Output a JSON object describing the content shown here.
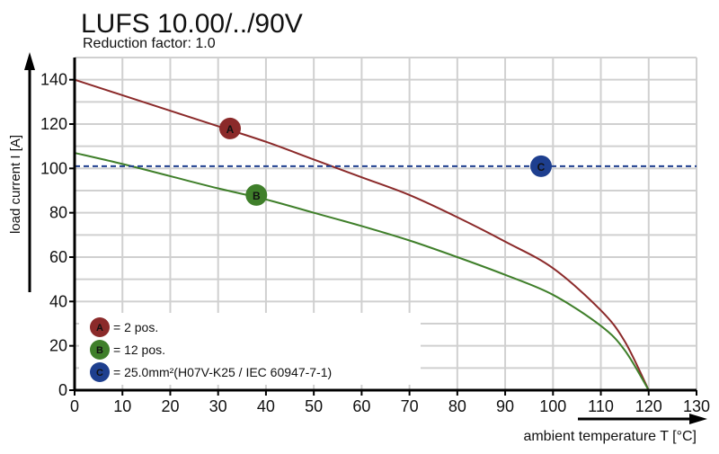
{
  "chart_data": {
    "type": "line",
    "title": "LUFS 10.00/../90V",
    "subtitle": "Reduction factor: 1.0",
    "xlabel": "ambient temperature T [°C]",
    "ylabel": "load current I [A]",
    "xlim": [
      0,
      130
    ],
    "ylim": [
      0,
      150
    ],
    "xticks": [
      0,
      10,
      20,
      30,
      40,
      50,
      60,
      70,
      80,
      90,
      100,
      110,
      120,
      130
    ],
    "yticks": [
      0,
      20,
      40,
      60,
      80,
      100,
      120,
      140
    ],
    "grid": true,
    "legend_placement": "bottom-left",
    "series": [
      {
        "marker": "A",
        "name": "= 2 pos.",
        "color": "#8b2a2a",
        "x": [
          0,
          10,
          20,
          30,
          40,
          50,
          60,
          70,
          80,
          90,
          100,
          110,
          115,
          120
        ],
        "y": [
          140,
          133,
          126,
          119,
          112,
          104,
          96,
          88,
          78,
          67,
          55,
          36,
          22,
          0
        ],
        "marker_at": [
          32.5,
          118
        ]
      },
      {
        "marker": "B",
        "name": "= 12 pos.",
        "color": "#3f7f2a",
        "x": [
          0,
          10,
          20,
          30,
          40,
          50,
          60,
          70,
          80,
          90,
          100,
          110,
          115,
          120
        ],
        "y": [
          107,
          102,
          96.5,
          91,
          86,
          80,
          74,
          67.5,
          60,
          52,
          43,
          29,
          18,
          0
        ],
        "marker_at": [
          38,
          88
        ]
      },
      {
        "marker": "C",
        "name": "= 25.0mm²(H07V-K25 / IEC 60947-7-1)",
        "color": "#1e3f8f",
        "style": "dashed",
        "x": [
          0,
          130
        ],
        "y": [
          101,
          101
        ],
        "marker_at": [
          97.5,
          101
        ]
      }
    ]
  }
}
